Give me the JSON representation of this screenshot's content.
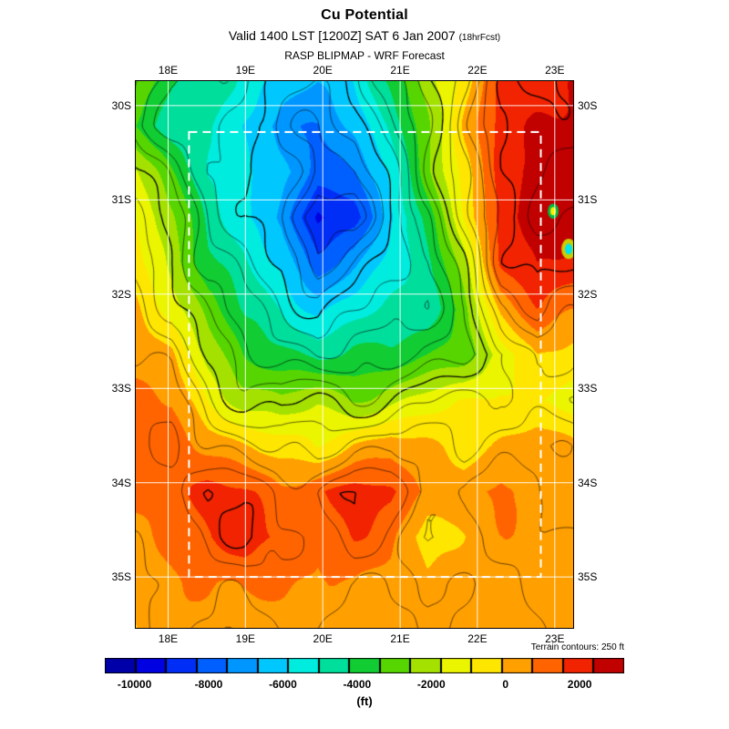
{
  "chart_data": {
    "type": "heatmap",
    "title": "Cu Potential",
    "valid_line": "Valid 1400 LST [1200Z] SAT 6 Jan 2007",
    "fcst_note": "(18hrFcst)",
    "model_line": "RASP BLIPMAP - WRF Forecast",
    "terrain_note": "Terrain contours: 250 ft",
    "unit_label": "(ft)",
    "x_tick_labels": [
      "18E",
      "19E",
      "20E",
      "21E",
      "22E",
      "23E"
    ],
    "x_tick_lons": [
      18,
      19,
      20,
      21,
      22,
      23
    ],
    "y_tick_labels": [
      "30S",
      "31S",
      "32S",
      "33S",
      "34S",
      "35S"
    ],
    "y_tick_lats": [
      30,
      31,
      32,
      33,
      34,
      35
    ],
    "lon_range": [
      17.57,
      23.25
    ],
    "lat_range": [
      29.73,
      35.55
    ],
    "inner_domain": {
      "lon_min": 18.27,
      "lon_max": 22.82,
      "lat_min": 30.28,
      "lat_max": 35.0
    },
    "colorbar": {
      "unit": "(ft)",
      "tick_labels": [
        "-10000",
        "-8000",
        "-6000",
        "-4000",
        "-2000",
        "0",
        "2000"
      ],
      "range": [
        -10800,
        3200
      ],
      "segments": 17,
      "stops": [
        [
          -10800,
          "#00008b"
        ],
        [
          -9600,
          "#0000e0"
        ],
        [
          -8400,
          "#0040ff"
        ],
        [
          -7200,
          "#0090ff"
        ],
        [
          -6200,
          "#00ccff"
        ],
        [
          -5400,
          "#00eedd"
        ],
        [
          -4600,
          "#00dd99"
        ],
        [
          -3800,
          "#11cc33"
        ],
        [
          -3000,
          "#55d500"
        ],
        [
          -2200,
          "#a0e000"
        ],
        [
          -1400,
          "#e8f400"
        ],
        [
          -800,
          "#ffff00"
        ],
        [
          -200,
          "#ffcc00"
        ],
        [
          300,
          "#ffa000"
        ],
        [
          800,
          "#ff7e00"
        ],
        [
          1400,
          "#ff5000"
        ],
        [
          2000,
          "#f02000"
        ],
        [
          2600,
          "#d00000"
        ],
        [
          3200,
          "#a00000"
        ]
      ]
    },
    "grid": {
      "note": "Cu Potential field (ft), 13x13 samples, row 0 = north (29.73S) to row 12 = south (35.55S), col 0 = west (17.57E) to col 12 = east (23.25E)",
      "values": [
        [
          -2500,
          -4000,
          -4500,
          -5500,
          -6000,
          -6500,
          -6000,
          -4000,
          -2000,
          -500,
          1500,
          2000,
          2500
        ],
        [
          -3500,
          -4500,
          -5000,
          -6000,
          -7000,
          -7500,
          -6500,
          -5000,
          -2500,
          0,
          1800,
          2500,
          2800
        ],
        [
          -1500,
          -3500,
          -5000,
          -5500,
          -6500,
          -8000,
          -7500,
          -5500,
          -3000,
          -500,
          2000,
          2800,
          2800
        ],
        [
          -1000,
          -2500,
          -4500,
          -5500,
          -7000,
          -9500,
          -8500,
          -6000,
          -4000,
          -1000,
          2200,
          2800,
          2500
        ],
        [
          -500,
          -2000,
          -4000,
          -5000,
          -6000,
          -8000,
          -7000,
          -5500,
          -4500,
          -2000,
          1500,
          2500,
          2200
        ],
        [
          0,
          -1000,
          -3000,
          -4500,
          -5000,
          -6000,
          -5500,
          -5000,
          -4500,
          -3000,
          0,
          1500,
          1000
        ],
        [
          500,
          0,
          -2000,
          -3500,
          -4000,
          -4500,
          -4000,
          -4000,
          -3500,
          -3000,
          -1500,
          0,
          -500
        ],
        [
          1000,
          500,
          -1000,
          -2000,
          -2500,
          -2000,
          -2500,
          -2000,
          -1500,
          -1000,
          -500,
          -1000,
          -1500
        ],
        [
          1000,
          1200,
          500,
          0,
          -500,
          -1000,
          0,
          500,
          0,
          -500,
          0,
          500,
          0
        ],
        [
          800,
          1500,
          1800,
          1500,
          1000,
          1500,
          1800,
          1500,
          800,
          300,
          800,
          300,
          500
        ],
        [
          500,
          1000,
          1500,
          2000,
          1500,
          1000,
          1500,
          1000,
          -500,
          0,
          500,
          800,
          600
        ],
        [
          0,
          500,
          800,
          1000,
          800,
          500,
          800,
          500,
          0,
          300,
          500,
          500,
          400
        ],
        [
          0,
          300,
          500,
          500,
          300,
          200,
          300,
          300,
          0,
          200,
          300,
          300,
          200
        ]
      ]
    },
    "contours": {
      "start": -9200,
      "end": 2800,
      "step": 800,
      "color": "#000000"
    },
    "anomalies": [
      {
        "lon": 22.98,
        "lat": 31.12,
        "core": "#ffee00",
        "ring": "#00bb44",
        "r": 6
      },
      {
        "lon": 23.18,
        "lat": 31.52,
        "core": "#00e5ee",
        "ring": "#cccc00",
        "r": 8
      }
    ]
  }
}
